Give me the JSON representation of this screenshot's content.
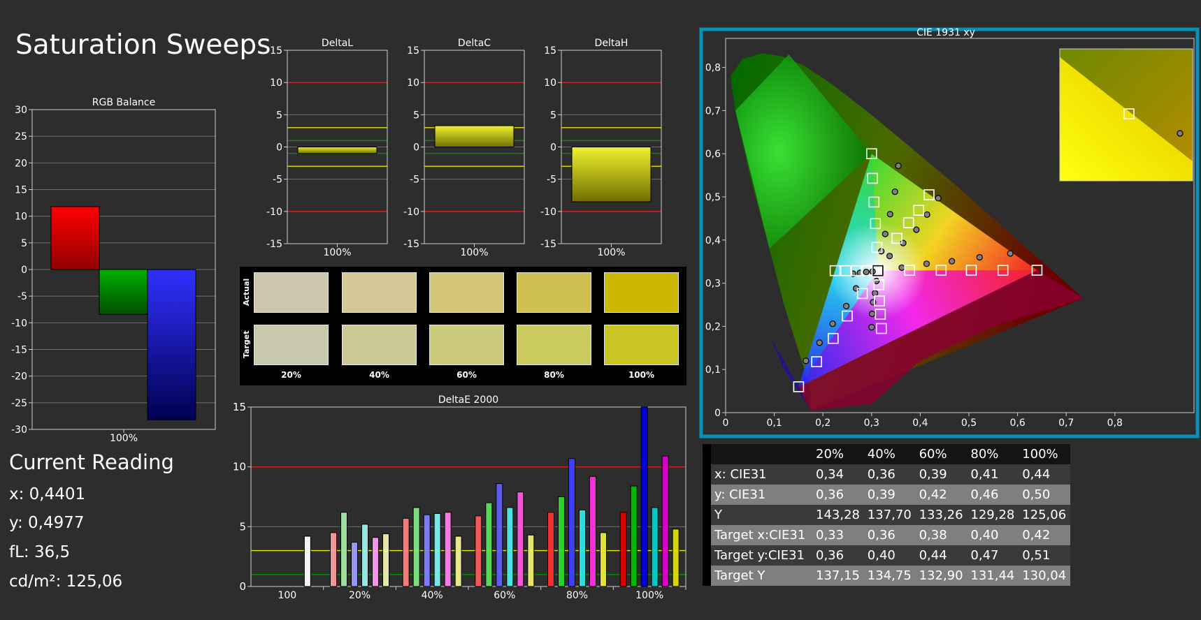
{
  "page": {
    "title": "Saturation Sweeps"
  },
  "current_reading": {
    "title": "Current Reading",
    "lines": [
      "x: 0,4401",
      "y: 0,4977",
      "fL: 36,5",
      "cd/m²: 125,06"
    ]
  },
  "swatches": {
    "row_labels": [
      "Actual",
      "Target"
    ],
    "col_labels": [
      "20%",
      "40%",
      "60%",
      "80%",
      "100%"
    ],
    "actual_colors": [
      "#cdc6ad",
      "#d2c795",
      "#d1c578",
      "#d0c052",
      "#ccb801"
    ],
    "target_colors": [
      "#c9c9ad",
      "#cdc996",
      "#cccb7c",
      "#cbca5e",
      "#c9c523"
    ]
  },
  "table": {
    "headers": [
      "",
      "20%",
      "40%",
      "60%",
      "80%",
      "100%"
    ],
    "rows": [
      [
        "x: CIE31",
        "0,34",
        "0,36",
        "0,39",
        "0,41",
        "0,44"
      ],
      [
        "y: CIE31",
        "0,36",
        "0,39",
        "0,42",
        "0,46",
        "0,50"
      ],
      [
        "Y",
        "143,28",
        "137,70",
        "133,26",
        "129,28",
        "125,06"
      ],
      [
        "Target x:CIE31",
        "0,33",
        "0,36",
        "0,38",
        "0,40",
        "0,42"
      ],
      [
        "Target y:CIE31",
        "0,36",
        "0,40",
        "0,44",
        "0,47",
        "0,51"
      ],
      [
        "Target Y",
        "137,15",
        "134,75",
        "132,90",
        "131,44",
        "130,04"
      ]
    ]
  },
  "chart_data": [
    {
      "type": "bar",
      "title": "RGB Balance",
      "categories": [
        "100%"
      ],
      "series": [
        {
          "values": [
            11.8
          ]
        },
        {
          "values": [
            -8.4
          ]
        },
        {
          "values": [
            -28.2
          ]
        }
      ],
      "colors": [
        "#ff0000",
        "#00a000",
        "#0000ff"
      ],
      "ylim": [
        -30,
        30
      ],
      "yticks": [
        30,
        25,
        20,
        15,
        10,
        5,
        0,
        -5,
        -10,
        -15,
        -20,
        -25,
        -30
      ]
    },
    {
      "type": "bar",
      "title": "DeltaL",
      "categories": [
        "100%"
      ],
      "values": [
        -1.0
      ],
      "ylim": [
        -15,
        15
      ],
      "yticks": [
        15,
        10,
        5,
        0,
        -5,
        -10,
        -15
      ],
      "reference_lines": [
        {
          "y": 10,
          "color": "#d12020"
        },
        {
          "y": -10,
          "color": "#d12020"
        },
        {
          "y": 3,
          "color": "#e6e600"
        },
        {
          "y": -3,
          "color": "#e6e600"
        },
        {
          "y": 1,
          "color": "#009000"
        },
        {
          "y": -1,
          "color": "#009000"
        }
      ]
    },
    {
      "type": "bar",
      "title": "DeltaC",
      "categories": [
        "100%"
      ],
      "values": [
        3.3
      ],
      "ylim": [
        -15,
        15
      ],
      "yticks": [
        15,
        10,
        5,
        0,
        -5,
        -10,
        -15
      ],
      "reference_lines": [
        {
          "y": 10,
          "color": "#d12020"
        },
        {
          "y": -10,
          "color": "#d12020"
        },
        {
          "y": 3,
          "color": "#e6e600"
        },
        {
          "y": -3,
          "color": "#e6e600"
        },
        {
          "y": 1,
          "color": "#009000"
        },
        {
          "y": -1,
          "color": "#009000"
        }
      ]
    },
    {
      "type": "bar",
      "title": "DeltaH",
      "categories": [
        "100%"
      ],
      "values": [
        -8.5
      ],
      "ylim": [
        -15,
        15
      ],
      "yticks": [
        15,
        10,
        5,
        0,
        -5,
        -10,
        -15
      ],
      "reference_lines": [
        {
          "y": 10,
          "color": "#d12020"
        },
        {
          "y": -10,
          "color": "#d12020"
        },
        {
          "y": 3,
          "color": "#e6e600"
        },
        {
          "y": -3,
          "color": "#e6e600"
        },
        {
          "y": 1,
          "color": "#009000"
        },
        {
          "y": -1,
          "color": "#009000"
        }
      ]
    },
    {
      "type": "bar",
      "title": "DeltaE 2000",
      "categories": [
        "100",
        "20%",
        "40%",
        "60%",
        "80%",
        "100%"
      ],
      "groups": [
        {
          "values": [
            4.2
          ],
          "colors": [
            "#ffffff"
          ]
        },
        {
          "values": [
            4.5,
            6.2,
            3.7,
            5.2,
            4.1,
            4.4
          ],
          "colors": [
            "#ff9c9c",
            "#a3e8a3",
            "#9c9cff",
            "#9cf0f0",
            "#ff9cf0",
            "#f0f0b0"
          ]
        },
        {
          "values": [
            5.7,
            6.6,
            6.0,
            6.1,
            6.2,
            4.2
          ],
          "colors": [
            "#ff8080",
            "#80e880",
            "#8080ff",
            "#80f0f0",
            "#ff80f0",
            "#f0f090"
          ]
        },
        {
          "values": [
            5.9,
            7.0,
            8.6,
            6.6,
            7.9,
            4.3
          ],
          "colors": [
            "#ff5a5a",
            "#5ae05a",
            "#6060ff",
            "#50eaea",
            "#ff5ae0",
            "#eeee70"
          ]
        },
        {
          "values": [
            6.2,
            7.5,
            10.7,
            6.4,
            9.2,
            4.5
          ],
          "colors": [
            "#ff3030",
            "#30d830",
            "#4040ff",
            "#30e6e6",
            "#ff30e0",
            "#eaea40"
          ]
        },
        {
          "values": [
            6.2,
            8.4,
            15.0,
            6.6,
            10.9,
            4.8
          ],
          "colors": [
            "#e00000",
            "#00c000",
            "#0000e0",
            "#00d0d0",
            "#e000d0",
            "#e0e000"
          ]
        }
      ],
      "ylim": [
        0,
        15
      ],
      "yticks": [
        15,
        10,
        5,
        0
      ],
      "reference_lines": [
        {
          "y": 10,
          "color": "#d12020"
        },
        {
          "y": 3,
          "color": "#e6e600"
        },
        {
          "y": 1,
          "color": "#009000"
        }
      ]
    },
    {
      "type": "scatter",
      "title": "CIE 1931 xy",
      "xlim": [
        0,
        0.85
      ],
      "ylim": [
        0,
        0.85
      ],
      "xticks": [
        "0",
        "0,1",
        "0,2",
        "0,3",
        "0,4",
        "0,5",
        "0,6",
        "0,7",
        "0,8"
      ],
      "yticks": [
        "0",
        "0,1",
        "0,2",
        "0,3",
        "0,4",
        "0,5",
        "0,6",
        "0,7",
        "0,8"
      ],
      "gamut_target": [
        [
          0.64,
          0.33
        ],
        [
          0.3,
          0.6
        ],
        [
          0.15,
          0.06
        ]
      ],
      "targets": [
        [
          0.313,
          0.329
        ],
        [
          0.291,
          0.329
        ],
        [
          0.269,
          0.329
        ],
        [
          0.247,
          0.329
        ],
        [
          0.225,
          0.329
        ],
        [
          0.302,
          0.543
        ],
        [
          0.305,
          0.488
        ],
        [
          0.308,
          0.438
        ],
        [
          0.311,
          0.383
        ],
        [
          0.187,
          0.118
        ],
        [
          0.221,
          0.172
        ],
        [
          0.25,
          0.224
        ],
        [
          0.281,
          0.276
        ],
        [
          0.57,
          0.33
        ],
        [
          0.505,
          0.33
        ],
        [
          0.443,
          0.33
        ],
        [
          0.378,
          0.33
        ],
        [
          0.32,
          0.195
        ],
        [
          0.318,
          0.228
        ],
        [
          0.316,
          0.259
        ],
        [
          0.315,
          0.296
        ],
        [
          0.418,
          0.505
        ],
        [
          0.397,
          0.469
        ],
        [
          0.376,
          0.44
        ],
        [
          0.352,
          0.404
        ]
      ],
      "measured": [
        [
          0.355,
          0.572
        ],
        [
          0.348,
          0.512
        ],
        [
          0.338,
          0.46
        ],
        [
          0.328,
          0.414
        ],
        [
          0.32,
          0.374
        ],
        [
          0.165,
          0.12
        ],
        [
          0.193,
          0.162
        ],
        [
          0.22,
          0.206
        ],
        [
          0.248,
          0.247
        ],
        [
          0.268,
          0.288
        ],
        [
          0.585,
          0.369
        ],
        [
          0.522,
          0.36
        ],
        [
          0.465,
          0.351
        ],
        [
          0.413,
          0.345
        ],
        [
          0.362,
          0.336
        ],
        [
          0.262,
          0.322
        ],
        [
          0.276,
          0.324
        ],
        [
          0.289,
          0.326
        ],
        [
          0.302,
          0.327
        ],
        [
          0.3,
          0.198
        ],
        [
          0.301,
          0.229
        ],
        [
          0.303,
          0.256
        ],
        [
          0.307,
          0.277
        ],
        [
          0.31,
          0.305
        ],
        [
          0.437,
          0.497
        ],
        [
          0.414,
          0.459
        ],
        [
          0.392,
          0.424
        ],
        [
          0.365,
          0.393
        ],
        [
          0.337,
          0.363
        ]
      ]
    }
  ]
}
